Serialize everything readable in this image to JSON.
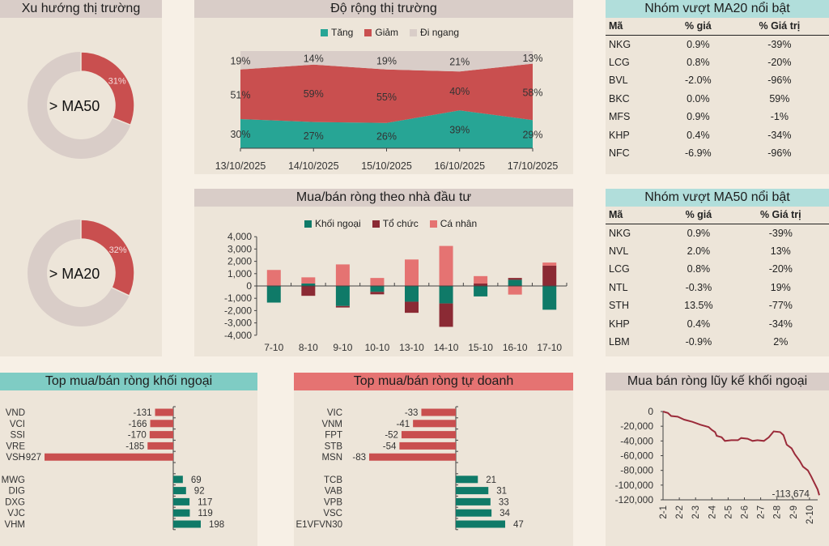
{
  "trend": {
    "title": "Xu hướng thị trường",
    "donuts": [
      {
        "label": "> MA50",
        "percent": 31,
        "percent_label": "31%"
      },
      {
        "label": "> MA20",
        "percent": 32,
        "percent_label": "32%"
      }
    ]
  },
  "colors": {
    "tang": "#27a595",
    "giam": "#c94f4f",
    "di_ngang": "#d9cdc8",
    "khoi_ngoai": "#0f7a68",
    "to_chuc": "#8b2a34",
    "ca_nhan": "#e57372",
    "line": "#9b2b3a"
  },
  "chart_data": [
    {
      "id": "breadth",
      "type": "area",
      "title": "Độ rộng thị trường",
      "categories": [
        "13/10/2025",
        "14/10/2025",
        "15/10/2025",
        "16/10/2025",
        "17/10/2025"
      ],
      "series": [
        {
          "name": "Tăng",
          "values": [
            30,
            27,
            26,
            39,
            29
          ],
          "labels": [
            "30%",
            "27%",
            "26%",
            "39%",
            "29%"
          ]
        },
        {
          "name": "Giảm",
          "values": [
            51,
            59,
            55,
            40,
            58
          ],
          "labels": [
            "51%",
            "59%",
            "55%",
            "40%",
            "58%"
          ]
        },
        {
          "name": "Đi ngang",
          "values": [
            19,
            14,
            19,
            21,
            13
          ],
          "labels": [
            "19%",
            "14%",
            "19%",
            "21%",
            "13%"
          ]
        }
      ],
      "stacked": true,
      "ylim": [
        0,
        100
      ],
      "legend": "top-center"
    },
    {
      "id": "investors",
      "type": "bar",
      "title": "Mua/bán ròng theo nhà đầu tư",
      "categories": [
        "7-10",
        "8-10",
        "9-10",
        "10-10",
        "13-10",
        "14-10",
        "15-10",
        "16-10",
        "17-10"
      ],
      "series": [
        {
          "name": "Khối ngoại",
          "values": [
            -1350,
            200,
            -1630,
            -480,
            -1280,
            -1420,
            -850,
            500,
            -1930
          ]
        },
        {
          "name": "Tổ chức",
          "values": [
            50,
            -800,
            -120,
            -200,
            -900,
            -1900,
            200,
            150,
            1650
          ]
        },
        {
          "name": "Cá nhân",
          "values": [
            1250,
            500,
            1750,
            650,
            2150,
            3250,
            600,
            -700,
            250
          ]
        }
      ],
      "stacked": true,
      "ylim": [
        -4000,
        4000
      ],
      "yticks": [
        "4,000",
        "3,000",
        "2,000",
        "1,000",
        "0",
        "-1,000",
        "-2,000",
        "-3,000",
        "-4,000"
      ],
      "ytick_values": [
        4000,
        3000,
        2000,
        1000,
        0,
        -1000,
        -2000,
        -3000,
        -4000
      ],
      "legend": "top-center"
    },
    {
      "id": "foreign_top",
      "type": "bar",
      "orientation": "horizontal",
      "title": "Top mua/bán ròng khối ngoại",
      "sell": {
        "categories": [
          "VND",
          "VCI",
          "SSI",
          "VRE",
          "VSH"
        ],
        "values": [
          -131,
          -166,
          -170,
          -185,
          -927
        ],
        "labels": [
          "-131",
          "-166",
          "-170",
          "-185",
          "-927"
        ]
      },
      "buy": {
        "categories": [
          "MWG",
          "DIG",
          "DXG",
          "VJC",
          "VHM"
        ],
        "values": [
          69,
          92,
          117,
          119,
          198
        ],
        "labels": [
          "69",
          "92",
          "117",
          "119",
          "198"
        ]
      }
    },
    {
      "id": "proprietary_top",
      "type": "bar",
      "orientation": "horizontal",
      "title": "Top mua/bán ròng tự doanh",
      "sell": {
        "categories": [
          "VIC",
          "VNM",
          "FPT",
          "STB",
          "MSN"
        ],
        "values": [
          -33,
          -41,
          -52,
          -54,
          -83
        ],
        "labels": [
          "-33",
          "-41",
          "-52",
          "-54",
          "-83"
        ]
      },
      "buy": {
        "categories": [
          "TCB",
          "VAB",
          "VPB",
          "VSC",
          "E1VFVN30"
        ],
        "values": [
          21,
          31,
          33,
          34,
          47
        ],
        "labels": [
          "21",
          "31",
          "33",
          "34",
          "47"
        ]
      }
    },
    {
      "id": "foreign_cumulative",
      "type": "line",
      "title": "Mua bán ròng lũy kế khối ngoại",
      "xticks": [
        "2-1",
        "2-2",
        "2-3",
        "2-4",
        "2-5",
        "2-6",
        "2-7",
        "2-8",
        "2-9",
        "2-10"
      ],
      "yticks": [
        "0",
        "-20,000",
        "-40,000",
        "-60,000",
        "-80,000",
        "-100,000",
        "-120,000"
      ],
      "ytick_values": [
        0,
        -20000,
        -40000,
        -60000,
        -80000,
        -100000,
        -120000
      ],
      "ylim": [
        -120000,
        0
      ],
      "x_index_range": [
        0,
        9.6
      ],
      "points": [
        [
          0,
          0
        ],
        [
          0.3,
          -2000
        ],
        [
          0.5,
          -6000
        ],
        [
          0.9,
          -7000
        ],
        [
          1.3,
          -11000
        ],
        [
          1.8,
          -14000
        ],
        [
          2.3,
          -18000
        ],
        [
          2.8,
          -21000
        ],
        [
          3.0,
          -25000
        ],
        [
          3.2,
          -28000
        ],
        [
          3.3,
          -33000
        ],
        [
          3.6,
          -35000
        ],
        [
          3.8,
          -40000
        ],
        [
          4.2,
          -39000
        ],
        [
          4.6,
          -39000
        ],
        [
          4.8,
          -36000
        ],
        [
          5.2,
          -37000
        ],
        [
          5.5,
          -40000
        ],
        [
          5.8,
          -39000
        ],
        [
          6.2,
          -40000
        ],
        [
          6.5,
          -35000
        ],
        [
          6.8,
          -27000
        ],
        [
          7.2,
          -28000
        ],
        [
          7.4,
          -32000
        ],
        [
          7.6,
          -45000
        ],
        [
          7.9,
          -50000
        ],
        [
          8.1,
          -58000
        ],
        [
          8.4,
          -67000
        ],
        [
          8.6,
          -75000
        ],
        [
          8.9,
          -80000
        ],
        [
          9.1,
          -88000
        ],
        [
          9.3,
          -97000
        ],
        [
          9.5,
          -106000
        ],
        [
          9.6,
          -113674
        ]
      ],
      "last_value_label": "-113,674"
    }
  ],
  "ma20_table": {
    "title": "Nhóm vượt MA20 nổi bật",
    "headers": [
      "Mã",
      "% giá",
      "% Giá trị"
    ],
    "rows": [
      [
        "NKG",
        "0.9%",
        "-39%"
      ],
      [
        "LCG",
        "0.8%",
        "-20%"
      ],
      [
        "BVL",
        "-2.0%",
        "-96%"
      ],
      [
        "BKC",
        "0.0%",
        "59%"
      ],
      [
        "MFS",
        "0.9%",
        "-1%"
      ],
      [
        "KHP",
        "0.4%",
        "-34%"
      ],
      [
        "NFC",
        "-6.9%",
        "-96%"
      ]
    ]
  },
  "ma50_table": {
    "title": "Nhóm vượt MA50 nổi bật",
    "headers": [
      "Mã",
      "% giá",
      "% Giá trị"
    ],
    "rows": [
      [
        "NKG",
        "0.9%",
        "-39%"
      ],
      [
        "NVL",
        "2.0%",
        "13%"
      ],
      [
        "LCG",
        "0.8%",
        "-20%"
      ],
      [
        "NTL",
        "-0.3%",
        "19%"
      ],
      [
        "STH",
        "13.5%",
        "-77%"
      ],
      [
        "KHP",
        "0.4%",
        "-34%"
      ],
      [
        "LBM",
        "-0.9%",
        "2%"
      ]
    ]
  }
}
